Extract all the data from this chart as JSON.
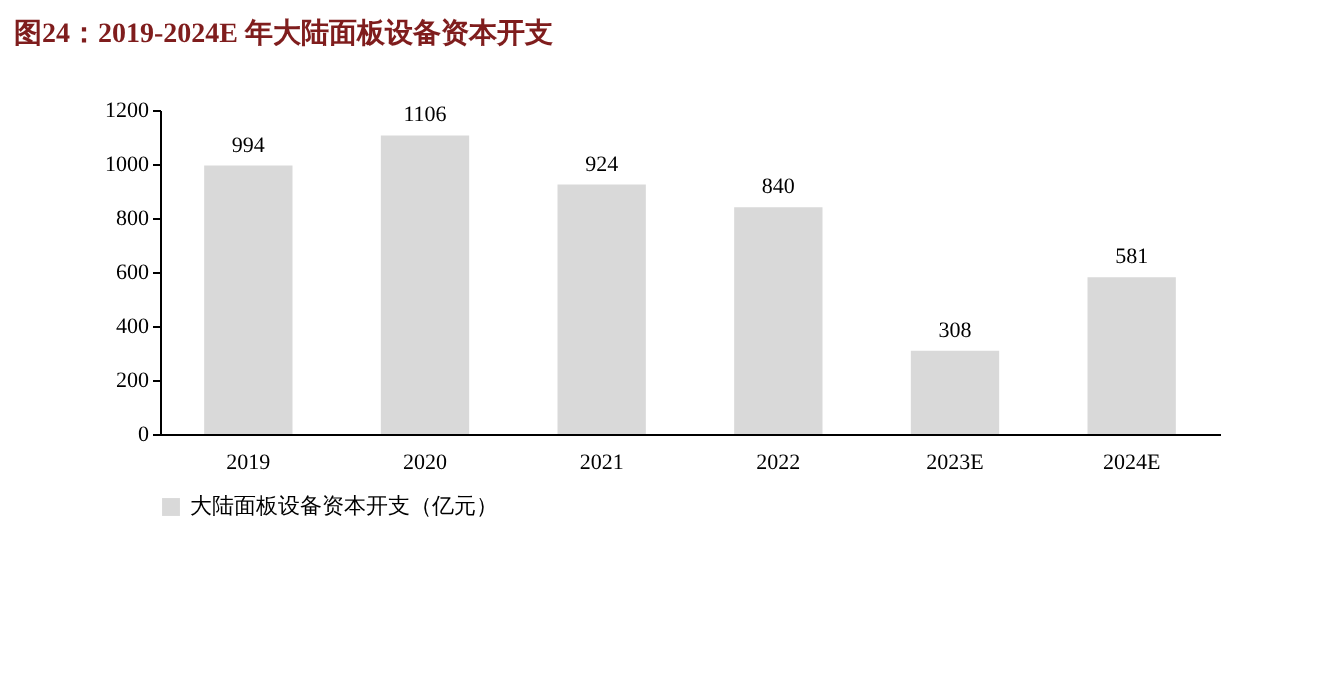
{
  "chart_data": {
    "type": "bar",
    "title": "图24：2019-2024E 年大陆面板设备资本开支",
    "categories": [
      "2019",
      "2020",
      "2021",
      "2022",
      "2023E",
      "2024E"
    ],
    "series": [
      {
        "name": "大陆面板设备资本开支（亿元）",
        "color": "#d9d9d9",
        "values": [
          994,
          1106,
          924,
          840,
          308,
          581
        ]
      }
    ],
    "ylim": [
      0,
      1200
    ],
    "yticks": [
      0,
      200,
      400,
      600,
      800,
      1000,
      1200
    ],
    "grid": false,
    "legend": "bottom",
    "data_labels": true
  }
}
